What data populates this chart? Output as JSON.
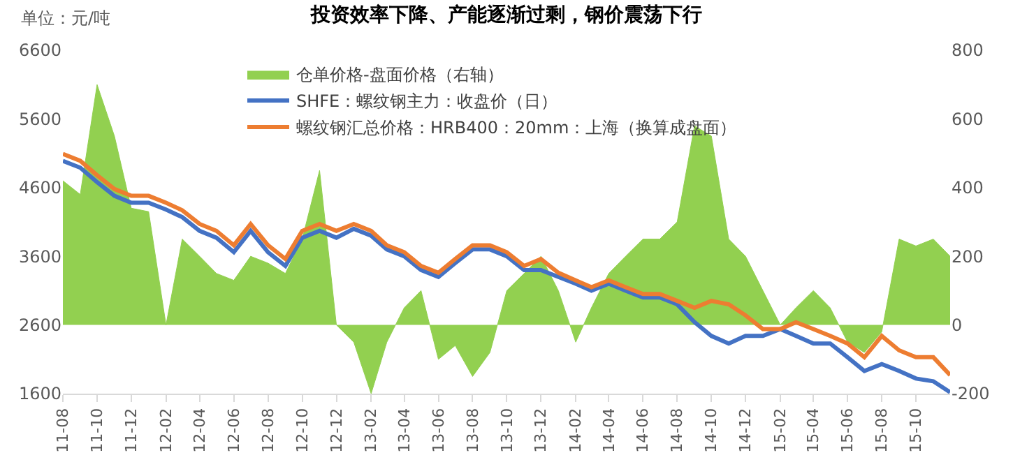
{
  "chart_data": {
    "type": "line",
    "title": "投资效率下降、产能逐渐过剩，钢价震荡下行",
    "annotations": [
      "单位：元/吨"
    ],
    "x": [
      "2011-08",
      "2011-09",
      "2011-10",
      "2011-11",
      "2011-12",
      "2012-01",
      "2012-02",
      "2012-03",
      "2012-04",
      "2012-05",
      "2012-06",
      "2012-07",
      "2012-08",
      "2012-09",
      "2012-10",
      "2012-11",
      "2012-12",
      "2013-01",
      "2013-02",
      "2013-03",
      "2013-04",
      "2013-05",
      "2013-06",
      "2013-07",
      "2013-08",
      "2013-09",
      "2013-10",
      "2013-11",
      "2013-12",
      "2014-01",
      "2014-02",
      "2014-03",
      "2014-04",
      "2014-05",
      "2014-06",
      "2014-07",
      "2014-08",
      "2014-09",
      "2014-10",
      "2014-11",
      "2014-12",
      "2015-01",
      "2015-02",
      "2015-03",
      "2015-04",
      "2015-05",
      "2015-06",
      "2015-07",
      "2015-08",
      "2015-09",
      "2015-10",
      "2015-11",
      "2015-12"
    ],
    "series": [
      {
        "name": "仓单价格-盘面价格（右轴）",
        "type": "area",
        "axis": "y2",
        "color": "#92d050",
        "values": [
          420,
          380,
          700,
          550,
          340,
          330,
          0,
          250,
          200,
          150,
          130,
          200,
          180,
          150,
          250,
          450,
          0,
          -50,
          -200,
          -50,
          50,
          100,
          -100,
          -60,
          -150,
          -80,
          100,
          150,
          200,
          100,
          -50,
          50,
          150,
          200,
          250,
          250,
          300,
          580,
          550,
          250,
          200,
          100,
          0,
          50,
          100,
          50,
          -50,
          -80,
          -20,
          250,
          230,
          250,
          200
        ]
      },
      {
        "name": "SHFE：螺纹钢主力：收盘价（日）",
        "color": "#4472c4",
        "values": [
          4990,
          4890,
          4680,
          4480,
          4380,
          4380,
          4280,
          4170,
          3970,
          3870,
          3660,
          3970,
          3660,
          3460,
          3870,
          3970,
          3870,
          4000,
          3900,
          3700,
          3600,
          3400,
          3300,
          3500,
          3700,
          3700,
          3600,
          3400,
          3400,
          3300,
          3200,
          3100,
          3200,
          3100,
          3000,
          3000,
          2900,
          2640,
          2440,
          2330,
          2440,
          2440,
          2540,
          2440,
          2330,
          2330,
          2130,
          1930,
          2030,
          1930,
          1820,
          1780,
          1620
        ]
      },
      {
        "name": "螺纹钢汇总价格：HRB400：20mm：上海（换算成盘面）",
        "color": "#ed7d31",
        "values": [
          5090,
          4990,
          4780,
          4580,
          4480,
          4480,
          4380,
          4270,
          4070,
          3970,
          3760,
          4070,
          3760,
          3560,
          3970,
          4070,
          3970,
          4070,
          3970,
          3760,
          3660,
          3460,
          3360,
          3560,
          3760,
          3760,
          3660,
          3460,
          3560,
          3360,
          3250,
          3150,
          3250,
          3150,
          3050,
          3050,
          2950,
          2850,
          2950,
          2900,
          2740,
          2540,
          2540,
          2640,
          2540,
          2440,
          2330,
          2130,
          2440,
          2230,
          2130,
          2130,
          1870
        ]
      }
    ],
    "xlim": [
      "2011-08",
      "2015-12"
    ],
    "xticks": [
      {
        "value": "2011-08",
        "label": "11-08"
      },
      {
        "value": "2011-10",
        "label": "11-10"
      },
      {
        "value": "2011-12",
        "label": "11-12"
      },
      {
        "value": "2012-02",
        "label": "12-02"
      },
      {
        "value": "2012-04",
        "label": "12-04"
      },
      {
        "value": "2012-06",
        "label": "12-06"
      },
      {
        "value": "2012-08",
        "label": "12-08"
      },
      {
        "value": "2012-10",
        "label": "12-10"
      },
      {
        "value": "2012-12",
        "label": "12-12"
      },
      {
        "value": "2013-02",
        "label": "13-02"
      },
      {
        "value": "2013-04",
        "label": "13-04"
      },
      {
        "value": "2013-06",
        "label": "13-06"
      },
      {
        "value": "2013-08",
        "label": "13-08"
      },
      {
        "value": "2013-10",
        "label": "13-10"
      },
      {
        "value": "2013-12",
        "label": "13-12"
      },
      {
        "value": "2014-02",
        "label": "14-02"
      },
      {
        "value": "2014-04",
        "label": "14-04"
      },
      {
        "value": "2014-06",
        "label": "14-06"
      },
      {
        "value": "2014-08",
        "label": "14-08"
      },
      {
        "value": "2014-10",
        "label": "14-10"
      },
      {
        "value": "2014-12",
        "label": "14-12"
      },
      {
        "value": "2015-02",
        "label": "15-02"
      },
      {
        "value": "2015-04",
        "label": "15-04"
      },
      {
        "value": "2015-06",
        "label": "15-06"
      },
      {
        "value": "2015-08",
        "label": "15-08"
      },
      {
        "value": "2015-10",
        "label": "15-10"
      }
    ],
    "ylim": [
      1600,
      6600
    ],
    "yticks": [
      1600,
      2600,
      3600,
      4600,
      5600,
      6600
    ],
    "y2lim": [
      -200,
      800
    ],
    "y2ticks": [
      -200,
      0,
      200,
      400,
      600,
      800
    ],
    "legend": "top",
    "marker": "none",
    "line_style": "solid"
  }
}
